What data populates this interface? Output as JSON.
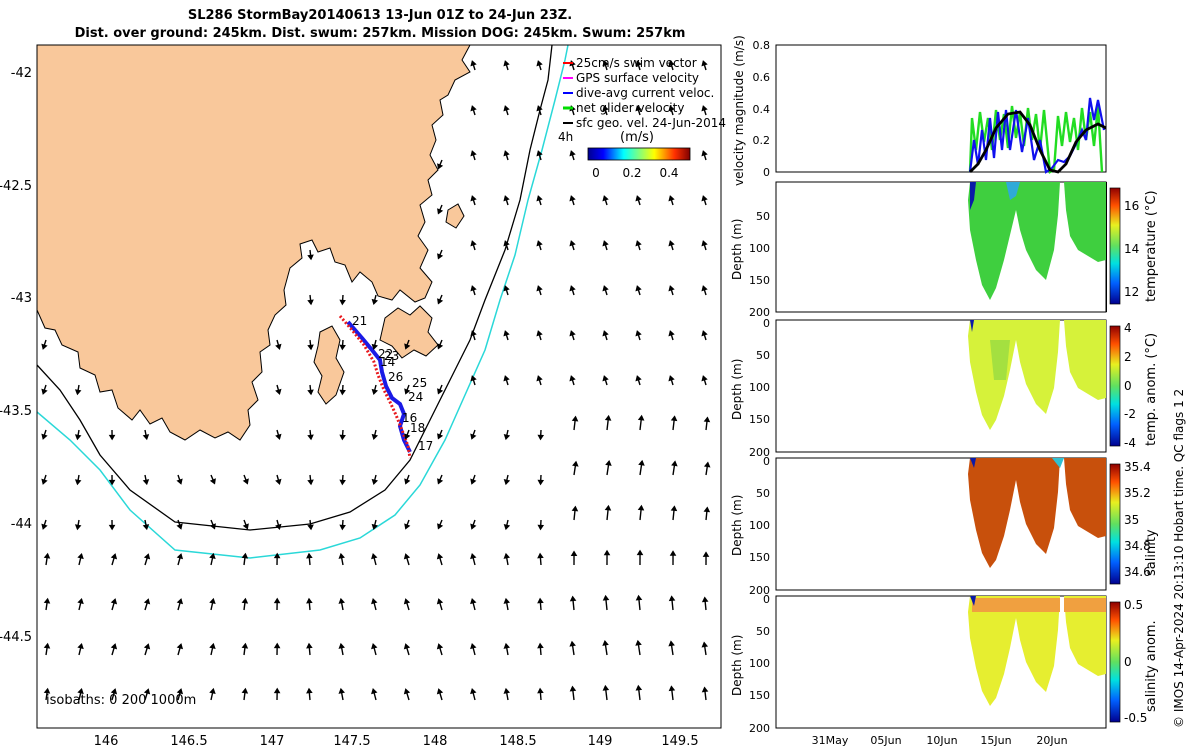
{
  "title": {
    "line1": "SL286 StormBay20140613 13-Jun 01Z to 24-Jun 23Z.",
    "line2": "Dist. over ground: 245km. Dist. swum: 257km. Mission DOG: 245km. Swum: 257km"
  },
  "map": {
    "lon_ticks": [
      "146",
      "146.5",
      "147",
      "147.5",
      "148",
      "148.5",
      "149",
      "149.5"
    ],
    "lat_ticks": [
      "-42",
      "-42.5",
      "-43",
      "-43.5",
      "-44",
      "-44.5"
    ],
    "isobath_text": "isobaths: 0   200  1000m",
    "land_color": "#f9c89b",
    "isobath_200_color": "#000000",
    "isobath_1000_color": "#2ad8d8",
    "track_color": "#e8191d",
    "current_color": "#1a1ae6",
    "day_labels": [
      "21",
      "22",
      "23",
      "14",
      "26",
      "25",
      "24",
      "16",
      "18",
      "17"
    ],
    "legend": {
      "items": [
        {
          "label": "25cm/s swim vector",
          "color": "#ff0000"
        },
        {
          "label": "GPS surface velocity",
          "color": "#ff00ff"
        },
        {
          "label": "dive-avg current veloc.",
          "color": "#0000ff"
        },
        {
          "label": "net glider velocity",
          "color": "#00dd00"
        },
        {
          "label": "sfc geo. vel. 24-Jun-2014",
          "color": "#000000"
        }
      ],
      "hours_label": "4h",
      "units_label": "(m/s)",
      "colorbar_ticks": [
        "0",
        "0.2",
        "0.4"
      ]
    }
  },
  "panels": [
    {
      "ylabel": "velocity magnitude (m/s)",
      "yticks": [
        "0",
        "0.2",
        "0.4",
        "0.6",
        "0.8"
      ]
    },
    {
      "ylabel": "Depth (m)",
      "yticks": [
        "50",
        "100",
        "150",
        "200"
      ],
      "cblabel": "temperature (°C)",
      "cbticks": [
        "16",
        "14",
        "12"
      ]
    },
    {
      "ylabel": "Depth (m)",
      "yticks": [
        "0",
        "50",
        "100",
        "150",
        "200"
      ],
      "cblabel": "temp. anom. (°C)",
      "cbticks": [
        "4",
        "2",
        "0",
        "-2",
        "-4"
      ]
    },
    {
      "ylabel": "Depth (m)",
      "yticks": [
        "0",
        "50",
        "100",
        "150",
        "200"
      ],
      "cblabel": "salinity",
      "cbticks": [
        "35.4",
        "35.2",
        "35",
        "34.8",
        "34.6"
      ]
    },
    {
      "ylabel": "Depth (m)",
      "yticks": [
        "0",
        "50",
        "100",
        "150",
        "200"
      ],
      "cblabel": "salinity anom.",
      "cbticks": [
        "0.5",
        "0",
        "-0.5"
      ]
    }
  ],
  "xticks": [
    "31May",
    "05Jun",
    "10Jun",
    "15Jun",
    "20Jun"
  ],
  "footer": "© IMOS 14-Apr-2024 20:13:10 Hobart time. QC flags 1  2"
}
